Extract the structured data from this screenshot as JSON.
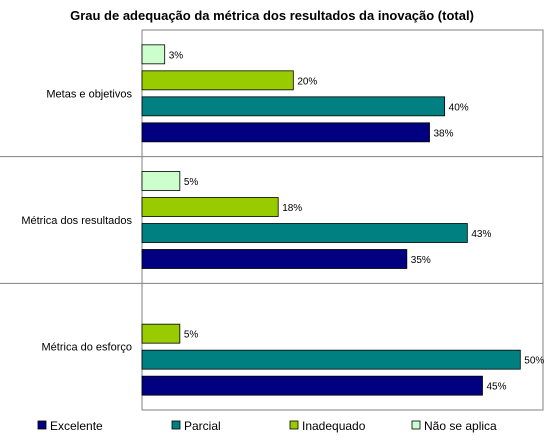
{
  "chart_data": {
    "type": "bar",
    "orientation": "horizontal",
    "title": "Grau de adequação da métrica dos resultados da inovação (total)",
    "categories": [
      "Metas e objetivos",
      "Métrica dos resultados",
      "Métrica do esforço"
    ],
    "series": [
      {
        "name": "Não se aplica",
        "color": "#ccffcc",
        "values": [
          3,
          5,
          null
        ],
        "labels": [
          "3%",
          "5%",
          null
        ]
      },
      {
        "name": "Inadequado",
        "color": "#99cc00",
        "values": [
          20,
          18,
          5
        ],
        "labels": [
          "20%",
          "18%",
          "5%"
        ]
      },
      {
        "name": "Parcial",
        "color": "#008080",
        "values": [
          40,
          43,
          50
        ],
        "labels": [
          "40%",
          "43%",
          "50%"
        ]
      },
      {
        "name": "Excelente",
        "color": "#000080",
        "values": [
          38,
          35,
          45
        ],
        "labels": [
          "38%",
          "35%",
          "45%"
        ]
      }
    ],
    "legend_order": [
      "Excelente",
      "Parcial",
      "Inadequado",
      "Não se aplica"
    ],
    "xlim": [
      0,
      53
    ],
    "grid": false,
    "legend_position": "bottom",
    "value_unit": "%"
  }
}
